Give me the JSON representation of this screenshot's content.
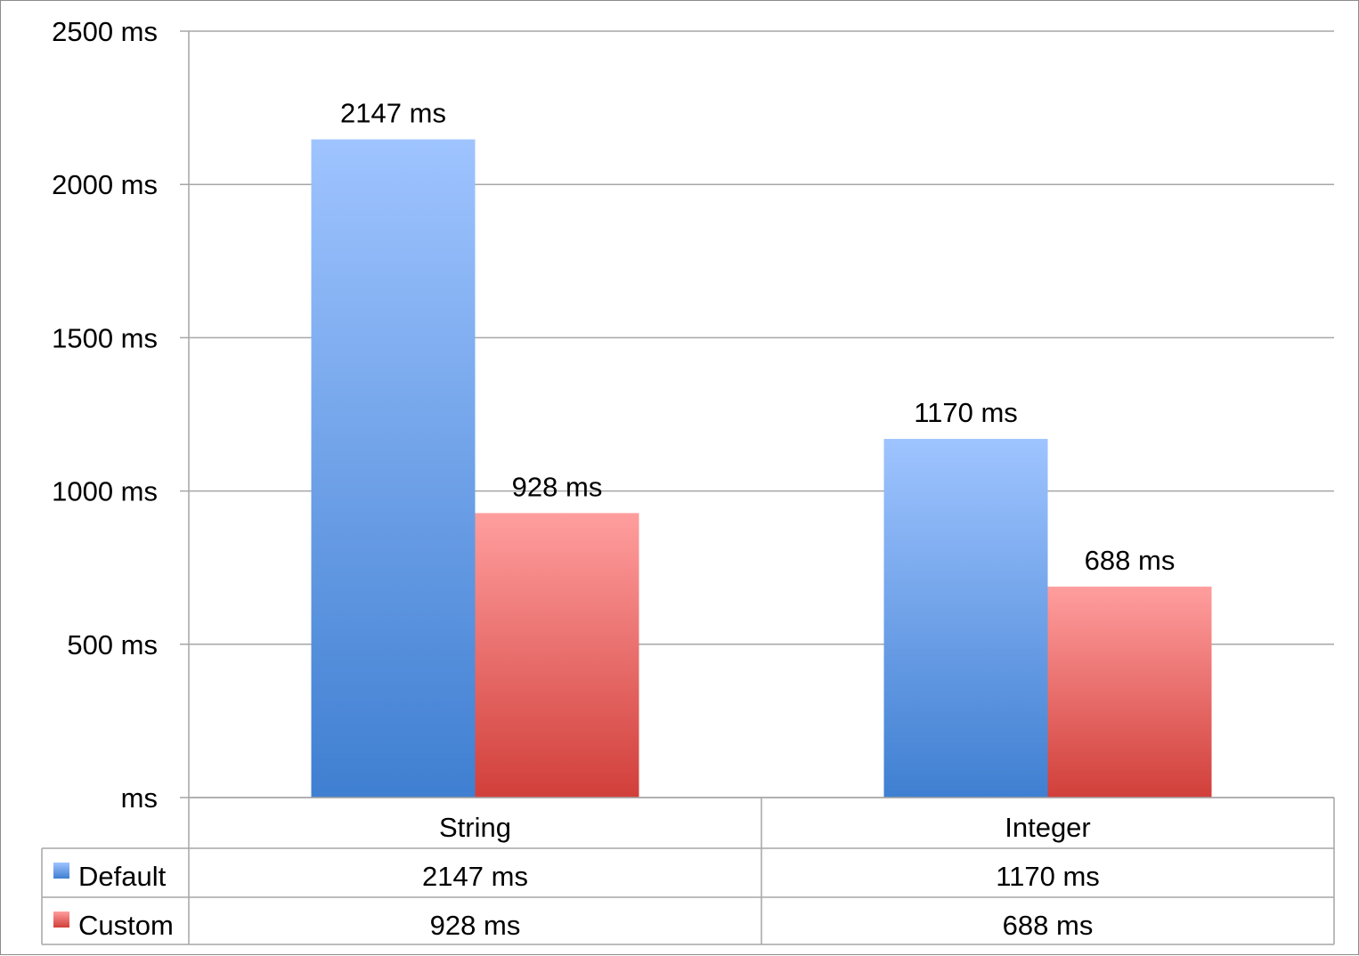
{
  "chart_data": {
    "type": "bar",
    "categories": [
      "String",
      "Integer"
    ],
    "series": [
      {
        "name": "Default",
        "values": [
          2147,
          1170
        ],
        "value_labels": [
          "2147 ms",
          "1170 ms"
        ],
        "color_top": "#9fc4ff",
        "color_bottom": "#3f7fd1"
      },
      {
        "name": "Custom",
        "values": [
          928,
          688
        ],
        "value_labels": [
          "928 ms",
          "688 ms"
        ],
        "color_top": "#ff9e9e",
        "color_bottom": "#d13f3a"
      }
    ],
    "ylim": [
      0,
      2500
    ],
    "yticks": [
      0,
      500,
      1000,
      1500,
      2000,
      2500
    ],
    "ytick_labels": [
      "ms",
      "500 ms",
      "1000 ms",
      "1500 ms",
      "2000 ms",
      "2500 ms"
    ],
    "title": "",
    "xlabel": "",
    "ylabel": "",
    "grid": true,
    "legend": "data-table-left",
    "data_table": true,
    "gridline_color": "#a6a6a6"
  }
}
